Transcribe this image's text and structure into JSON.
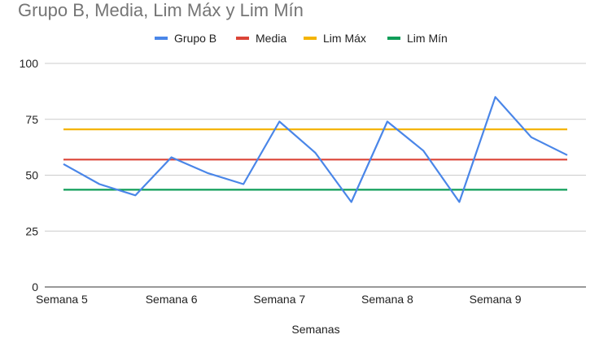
{
  "chart_data": {
    "type": "line",
    "title": "Grupo B, Media, Lim Máx y Lim Mín",
    "xlabel": "Semanas",
    "ylabel": "",
    "ylim": [
      0,
      100
    ],
    "yticks": [
      "0",
      "25",
      "50",
      "75",
      "100"
    ],
    "grid": true,
    "legend_position": "top",
    "x_tick_labels": [
      "Semana 5",
      "Semana 6",
      "Semana 7",
      "Semana 8",
      "Semana 9"
    ],
    "series": [
      {
        "name": "Grupo B",
        "color": "#4a86e8",
        "values": [
          55,
          46,
          41,
          58,
          51,
          46,
          74,
          60,
          38,
          74,
          61,
          38,
          85,
          67,
          59
        ]
      },
      {
        "name": "Media",
        "color": "#db4437",
        "values": [
          57,
          57,
          57,
          57,
          57,
          57,
          57,
          57,
          57,
          57,
          57,
          57,
          57,
          57,
          57
        ]
      },
      {
        "name": "Lim Máx",
        "color": "#f4b400",
        "values": [
          70.5,
          70.5,
          70.5,
          70.5,
          70.5,
          70.5,
          70.5,
          70.5,
          70.5,
          70.5,
          70.5,
          70.5,
          70.5,
          70.5,
          70.5
        ]
      },
      {
        "name": "Lim Mín",
        "color": "#0f9d58",
        "values": [
          43.5,
          43.5,
          43.5,
          43.5,
          43.5,
          43.5,
          43.5,
          43.5,
          43.5,
          43.5,
          43.5,
          43.5,
          43.5,
          43.5,
          43.5
        ]
      }
    ]
  }
}
